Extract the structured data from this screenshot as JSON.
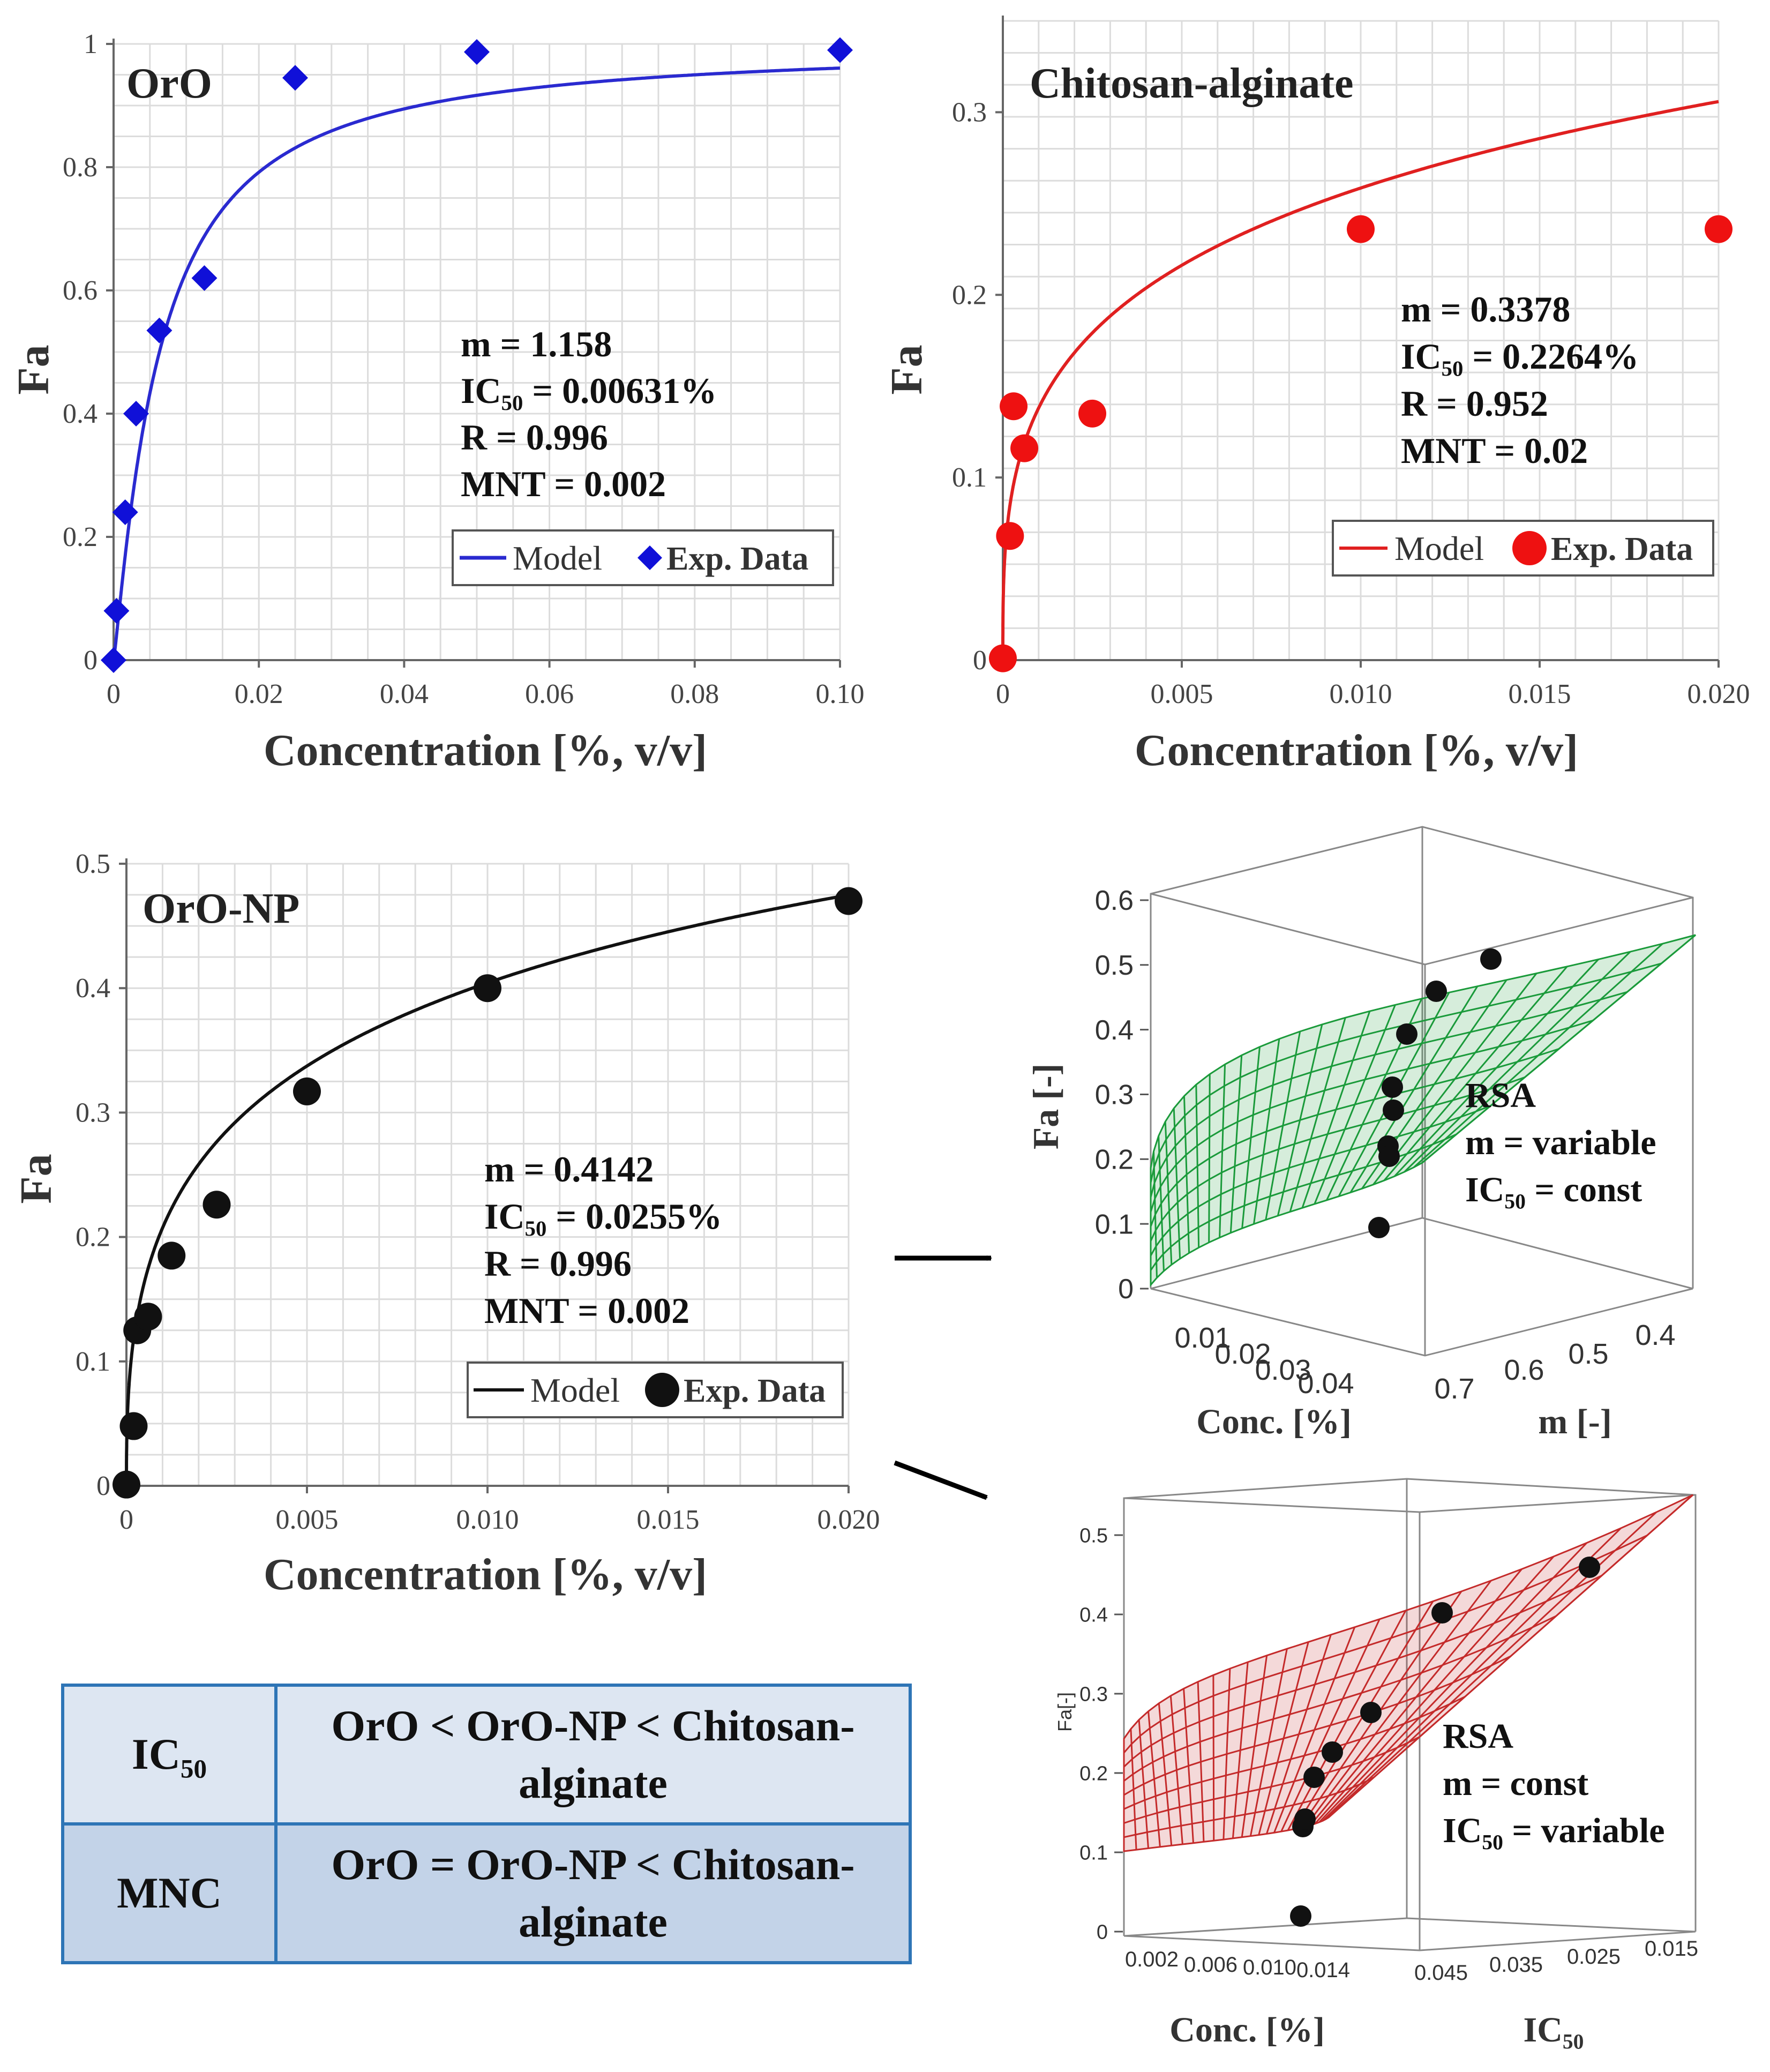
{
  "figure_caption": "",
  "chart_data": [
    {
      "id": "oro",
      "type": "scatter",
      "title": "OrO",
      "xlabel": "Concentration [%, v/v]",
      "ylabel": "Fa",
      "xlim": [
        0,
        0.1
      ],
      "ylim": [
        0,
        1
      ],
      "xticks": [
        "0",
        "0.02",
        "0.04",
        "0.06",
        "0.08",
        "0.10"
      ],
      "yticks": [
        "0",
        "0.2",
        "0.4",
        "0.6",
        "0.8",
        "1"
      ],
      "grid": true,
      "model": {
        "m": 1.158,
        "ic50": 0.00631,
        "color": "#2a2ad0"
      },
      "points": [
        [
          0,
          0
        ],
        [
          0.0004,
          0.08
        ],
        [
          0.0016,
          0.24
        ],
        [
          0.0031,
          0.4
        ],
        [
          0.0063,
          0.535
        ],
        [
          0.0125,
          0.62
        ],
        [
          0.025,
          0.945
        ],
        [
          0.05,
          0.987
        ],
        [
          0.1,
          0.99
        ]
      ],
      "marker": "diamond",
      "marker_color": "#1010d8",
      "params": [
        "m = 1.158",
        "IC₅₀ = 0.00631%",
        "R = 0.996",
        "MNT = 0.002"
      ],
      "legend": {
        "model": "Model",
        "data": "Exp. Data"
      }
    },
    {
      "id": "chitosan",
      "type": "scatter",
      "title": "Chitosan-alginate",
      "xlabel": "Concentration [%, v/v]",
      "ylabel": "Fa",
      "xlim": [
        0,
        0.02
      ],
      "ylim": [
        0,
        0.35
      ],
      "xticks": [
        "0",
        "0.005",
        "0.010",
        "0.015",
        "0.020"
      ],
      "yticks": [
        "0",
        "0.1",
        "0.2",
        "0.3"
      ],
      "grid": true,
      "model": {
        "m": 0.3378,
        "ic50": 0.2264,
        "color": "#e02020"
      },
      "points": [
        [
          0,
          0.001
        ],
        [
          0.0002,
          0.068
        ],
        [
          0.0003,
          0.139
        ],
        [
          0.0006,
          0.116
        ],
        [
          0.0025,
          0.135
        ],
        [
          0.01,
          0.236
        ],
        [
          0.02,
          0.236
        ]
      ],
      "marker": "circle",
      "marker_color": "#ee1111",
      "params": [
        "m = 0.3378",
        "IC₅₀ = 0.2264%",
        "R = 0.952",
        "MNT = 0.02"
      ],
      "legend": {
        "model": "Model",
        "data": "Exp. Data"
      }
    },
    {
      "id": "oronp",
      "type": "scatter",
      "title": "OrO-NP",
      "xlabel": "Concentration [%, v/v]",
      "ylabel": "Fa",
      "xlim": [
        0,
        0.02
      ],
      "ylim": [
        0,
        0.5
      ],
      "xticks": [
        "0",
        "0.005",
        "0.010",
        "0.015",
        "0.020"
      ],
      "yticks": [
        "0",
        "0.1",
        "0.2",
        "0.3",
        "0.4",
        "0.5"
      ],
      "grid": true,
      "model": {
        "m": 0.4142,
        "ic50": 0.0255,
        "color": "#111111"
      },
      "points": [
        [
          0,
          0.001
        ],
        [
          0.0002,
          0.048
        ],
        [
          0.0003,
          0.125
        ],
        [
          0.0006,
          0.136
        ],
        [
          0.00125,
          0.185
        ],
        [
          0.0025,
          0.226
        ],
        [
          0.005,
          0.317
        ],
        [
          0.01,
          0.4
        ],
        [
          0.02,
          0.47
        ]
      ],
      "marker": "circle",
      "marker_color": "#111111",
      "params": [
        "m = 0.4142",
        "IC₅₀ = 0.0255%",
        "R = 0.996",
        "MNT = 0.002"
      ],
      "legend": {
        "model": "Model",
        "data": "Exp. Data"
      }
    },
    {
      "id": "rsa1",
      "type": "surface",
      "zlabel": "Fa [-]",
      "zticks": [
        "0",
        "0.1",
        "0.2",
        "0.3",
        "0.4",
        "0.5",
        "0.6"
      ],
      "xaxis_label": "Conc. [%]",
      "xticks": [
        "0.01",
        "0.02",
        "0.03",
        "0.04"
      ],
      "yaxis_label": "m [-]",
      "yticks": [
        "0.7",
        "0.6",
        "0.5",
        "0.4"
      ],
      "surface_color": "#1a9a3a",
      "annotation": [
        "RSA",
        "m = variable",
        "IC₅₀ = const"
      ]
    },
    {
      "id": "rsa2",
      "type": "surface",
      "zlabel": "Fa[-]",
      "zticks": [
        "0",
        "0.1",
        "0.2",
        "0.3",
        "0.4",
        "0.5"
      ],
      "xaxis_label": "Conc. [%]",
      "xticks": [
        "0.002",
        "0.006",
        "0.010",
        "0.014"
      ],
      "yaxis_label": "IC₅₀",
      "yticks": [
        "0.045",
        "0.035",
        "0.025",
        "0.015"
      ],
      "surface_color": "#c42a2a",
      "annotation": [
        "RSA",
        "m = const",
        "IC₅₀ = variable"
      ]
    }
  ],
  "comparison_table": {
    "rows": [
      {
        "label": "IC₅₀",
        "value": "OrO < OrO-NP < Chitosan-alginate"
      },
      {
        "label": "MNC",
        "value": "OrO = OrO-NP < Chitosan-alginate"
      }
    ]
  }
}
